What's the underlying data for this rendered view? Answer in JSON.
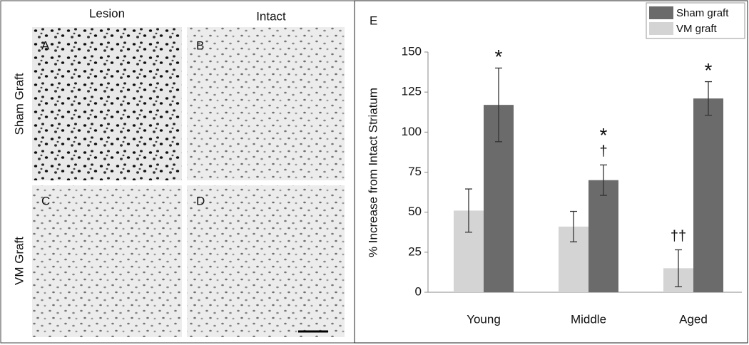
{
  "micrographs": {
    "columns": [
      "Lesion",
      "Intact"
    ],
    "rows": [
      "Sham Graft",
      "VM Graft"
    ],
    "panels": [
      "A",
      "B",
      "C",
      "D"
    ]
  },
  "chart_data": {
    "type": "bar",
    "panel_label": "E",
    "y_label": "% Increase from Intact Striatum",
    "categories": [
      "Young",
      "Middle",
      "Aged"
    ],
    "series": [
      {
        "name": "Sham graft",
        "color": "#6b6b6b",
        "values": [
          117,
          70,
          121
        ],
        "errors": [
          23,
          9.5,
          10.5
        ],
        "markers": [
          [
            "*"
          ],
          [
            "*",
            "†"
          ],
          [
            "*"
          ]
        ]
      },
      {
        "name": "VM graft",
        "color": "#d4d4d4",
        "values": [
          51,
          41,
          15
        ],
        "errors": [
          13.5,
          9.5,
          11.5
        ],
        "markers": [
          null,
          null,
          [
            "††"
          ]
        ]
      }
    ],
    "ylim": [
      0,
      150
    ],
    "yticks": [
      0,
      25,
      50,
      75,
      100,
      125,
      150
    ],
    "legend": "top-right",
    "grid": false
  }
}
